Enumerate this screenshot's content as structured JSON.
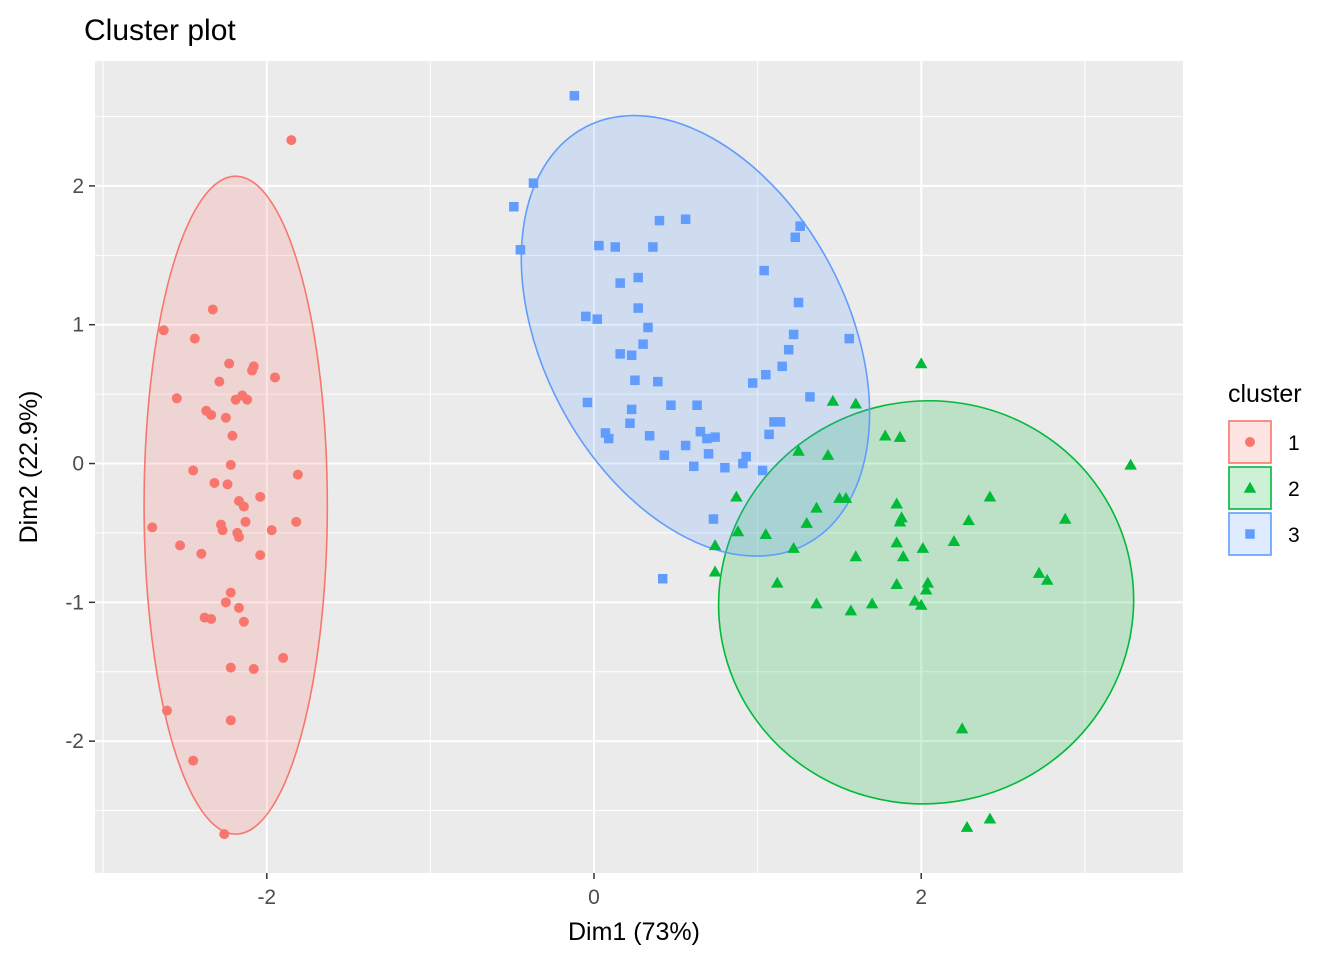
{
  "chart_data": {
    "type": "scatter",
    "title": "Cluster plot",
    "xlabel": "Dim1 (73%)",
    "ylabel": "Dim2 (22.9%)",
    "xlim": [
      -3.05,
      3.6
    ],
    "ylim": [
      -2.95,
      2.9
    ],
    "x_ticks": [
      -2,
      0,
      2
    ],
    "y_ticks": [
      -2,
      -1,
      0,
      1,
      2
    ],
    "grid": true,
    "legend": {
      "title": "cluster",
      "position": "right"
    },
    "series": [
      {
        "name": "1",
        "color": "#F8766D",
        "shape": "circle",
        "ellipse": {
          "cx": -2.19,
          "cy": -0.3,
          "rx": 0.56,
          "ry": 2.37,
          "angle": 0
        },
        "points": [
          [
            -1.85,
            2.33
          ],
          [
            -2.33,
            1.11
          ],
          [
            -2.63,
            0.96
          ],
          [
            -2.44,
            0.9
          ],
          [
            -2.23,
            0.72
          ],
          [
            -2.08,
            0.7
          ],
          [
            -2.09,
            0.67
          ],
          [
            -2.29,
            0.59
          ],
          [
            -1.95,
            0.62
          ],
          [
            -2.55,
            0.47
          ],
          [
            -2.15,
            0.49
          ],
          [
            -2.19,
            0.46
          ],
          [
            -2.12,
            0.46
          ],
          [
            -2.37,
            0.38
          ],
          [
            -2.34,
            0.35
          ],
          [
            -2.25,
            0.33
          ],
          [
            -2.21,
            0.2
          ],
          [
            -1.81,
            -0.08
          ],
          [
            -2.45,
            -0.05
          ],
          [
            -2.22,
            -0.01
          ],
          [
            -2.32,
            -0.14
          ],
          [
            -2.24,
            -0.15
          ],
          [
            -2.04,
            -0.24
          ],
          [
            -2.17,
            -0.27
          ],
          [
            -2.14,
            -0.31
          ],
          [
            -2.13,
            -0.42
          ],
          [
            -1.82,
            -0.42
          ],
          [
            -2.7,
            -0.46
          ],
          [
            -2.28,
            -0.44
          ],
          [
            -2.27,
            -0.48
          ],
          [
            -2.18,
            -0.5
          ],
          [
            -2.17,
            -0.53
          ],
          [
            -1.97,
            -0.48
          ],
          [
            -2.53,
            -0.59
          ],
          [
            -2.4,
            -0.65
          ],
          [
            -2.04,
            -0.66
          ],
          [
            -2.22,
            -0.93
          ],
          [
            -2.25,
            -1.0
          ],
          [
            -2.17,
            -1.04
          ],
          [
            -2.38,
            -1.11
          ],
          [
            -2.34,
            -1.12
          ],
          [
            -2.14,
            -1.14
          ],
          [
            -1.9,
            -1.4
          ],
          [
            -2.22,
            -1.47
          ],
          [
            -2.08,
            -1.48
          ],
          [
            -2.61,
            -1.78
          ],
          [
            -2.22,
            -1.85
          ],
          [
            -2.45,
            -2.14
          ],
          [
            -2.26,
            -2.67
          ]
        ]
      },
      {
        "name": "2",
        "color": "#00BA38",
        "shape": "triangle",
        "ellipse": {
          "cx": 2.03,
          "cy": -1.0,
          "rx": 1.27,
          "ry": 1.45,
          "angle": -12
        },
        "points": [
          [
            2.0,
            0.72
          ],
          [
            1.46,
            0.45
          ],
          [
            1.6,
            0.43
          ],
          [
            1.78,
            0.2
          ],
          [
            1.87,
            0.19
          ],
          [
            1.25,
            0.09
          ],
          [
            1.43,
            0.06
          ],
          [
            3.28,
            -0.01
          ],
          [
            2.42,
            -0.24
          ],
          [
            0.87,
            -0.24
          ],
          [
            1.5,
            -0.25
          ],
          [
            1.54,
            -0.25
          ],
          [
            1.85,
            -0.29
          ],
          [
            1.36,
            -0.32
          ],
          [
            2.88,
            -0.4
          ],
          [
            2.29,
            -0.41
          ],
          [
            1.88,
            -0.39
          ],
          [
            1.87,
            -0.42
          ],
          [
            1.3,
            -0.43
          ],
          [
            0.88,
            -0.49
          ],
          [
            1.05,
            -0.51
          ],
          [
            2.2,
            -0.56
          ],
          [
            1.85,
            -0.57
          ],
          [
            0.74,
            -0.59
          ],
          [
            1.22,
            -0.61
          ],
          [
            2.01,
            -0.61
          ],
          [
            1.89,
            -0.67
          ],
          [
            1.6,
            -0.67
          ],
          [
            0.74,
            -0.78
          ],
          [
            2.72,
            -0.79
          ],
          [
            2.77,
            -0.84
          ],
          [
            2.04,
            -0.86
          ],
          [
            1.12,
            -0.86
          ],
          [
            1.85,
            -0.87
          ],
          [
            2.03,
            -0.91
          ],
          [
            1.36,
            -1.01
          ],
          [
            1.7,
            -1.01
          ],
          [
            1.96,
            -0.99
          ],
          [
            2.0,
            -1.02
          ],
          [
            1.57,
            -1.06
          ],
          [
            2.25,
            -1.91
          ],
          [
            2.42,
            -2.56
          ],
          [
            2.28,
            -2.62
          ]
        ]
      },
      {
        "name": "3",
        "color": "#619CFF",
        "shape": "square",
        "ellipse": {
          "cx": 0.62,
          "cy": 0.92,
          "rx": 0.93,
          "ry": 1.7,
          "angle": -28
        },
        "points": [
          [
            -0.12,
            2.65
          ],
          [
            -0.37,
            2.02
          ],
          [
            -0.49,
            1.85
          ],
          [
            0.4,
            1.75
          ],
          [
            0.56,
            1.76
          ],
          [
            1.26,
            1.71
          ],
          [
            1.23,
            1.63
          ],
          [
            0.03,
            1.57
          ],
          [
            0.13,
            1.56
          ],
          [
            0.36,
            1.56
          ],
          [
            -0.45,
            1.54
          ],
          [
            1.04,
            1.39
          ],
          [
            0.27,
            1.34
          ],
          [
            0.16,
            1.3
          ],
          [
            1.25,
            1.16
          ],
          [
            0.27,
            1.12
          ],
          [
            -0.05,
            1.06
          ],
          [
            0.02,
            1.04
          ],
          [
            0.33,
            0.98
          ],
          [
            1.22,
            0.93
          ],
          [
            1.56,
            0.9
          ],
          [
            0.3,
            0.86
          ],
          [
            1.19,
            0.82
          ],
          [
            0.16,
            0.79
          ],
          [
            0.23,
            0.78
          ],
          [
            1.15,
            0.7
          ],
          [
            1.05,
            0.64
          ],
          [
            0.25,
            0.6
          ],
          [
            0.39,
            0.59
          ],
          [
            0.97,
            0.58
          ],
          [
            1.32,
            0.48
          ],
          [
            -0.04,
            0.44
          ],
          [
            0.47,
            0.42
          ],
          [
            0.63,
            0.42
          ],
          [
            0.23,
            0.39
          ],
          [
            1.1,
            0.3
          ],
          [
            1.14,
            0.3
          ],
          [
            0.22,
            0.29
          ],
          [
            0.07,
            0.22
          ],
          [
            0.65,
            0.23
          ],
          [
            1.07,
            0.21
          ],
          [
            0.34,
            0.2
          ],
          [
            0.09,
            0.18
          ],
          [
            0.69,
            0.18
          ],
          [
            0.74,
            0.19
          ],
          [
            0.56,
            0.13
          ],
          [
            0.7,
            0.07
          ],
          [
            0.43,
            0.06
          ],
          [
            0.93,
            0.05
          ],
          [
            0.91,
            0.0
          ],
          [
            0.61,
            -0.02
          ],
          [
            0.8,
            -0.03
          ],
          [
            1.03,
            -0.05
          ],
          [
            0.73,
            -0.4
          ],
          [
            0.42,
            -0.83
          ]
        ]
      }
    ]
  }
}
